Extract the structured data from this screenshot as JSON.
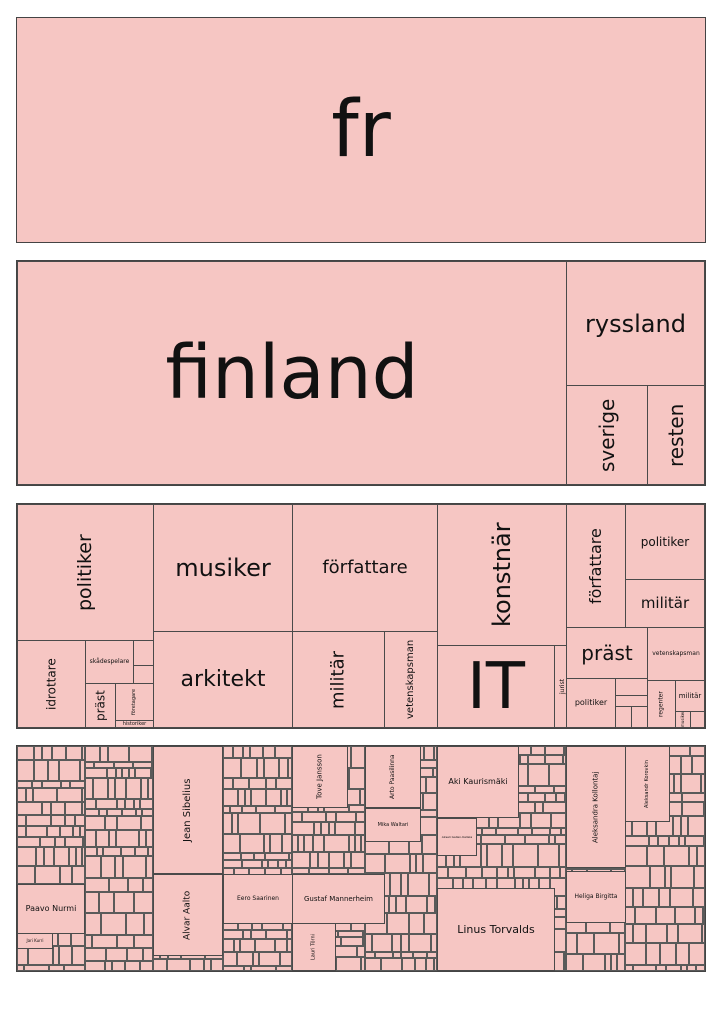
{
  "chart_data": {
    "type": "treemap",
    "levels": [
      {
        "level": 1,
        "cells": [
          {
            "label": "fr",
            "value": 100
          }
        ]
      },
      {
        "level": 2,
        "cells": [
          {
            "label": "finland",
            "value": 79.7
          },
          {
            "label": "ryssland",
            "value": 11.1
          },
          {
            "label": "sverige",
            "value": 5.0
          },
          {
            "label": "resten",
            "value": 4.2
          }
        ]
      },
      {
        "level": 3,
        "cells": [
          {
            "label": "politiker",
            "parent": "finland"
          },
          {
            "label": "idrottare",
            "parent": "finland"
          },
          {
            "label": "skådespelare",
            "parent": "finland"
          },
          {
            "label": "präst",
            "parent": "finland"
          },
          {
            "label": "företagare",
            "parent": "finland"
          },
          {
            "label": "historiker",
            "parent": "finland"
          },
          {
            "label": "musiker",
            "parent": "finland"
          },
          {
            "label": "arkitekt",
            "parent": "finland"
          },
          {
            "label": "författare",
            "parent": "finland"
          },
          {
            "label": "militär",
            "parent": "finland"
          },
          {
            "label": "vetenskapsman",
            "parent": "finland"
          },
          {
            "label": "konstnär",
            "parent": "finland"
          },
          {
            "label": "IT",
            "parent": "finland"
          },
          {
            "label": "jurist",
            "parent": "finland"
          },
          {
            "label": "författare",
            "parent": "ryssland"
          },
          {
            "label": "politiker",
            "parent": "ryssland"
          },
          {
            "label": "militär",
            "parent": "ryssland"
          },
          {
            "label": "präst",
            "parent": "sverige"
          },
          {
            "label": "politiker",
            "parent": "sverige"
          },
          {
            "label": "vetenskapsman",
            "parent": "resten"
          },
          {
            "label": "militär",
            "parent": "resten"
          },
          {
            "label": "regenter",
            "parent": "resten"
          },
          {
            "label": "musiker",
            "parent": "resten"
          }
        ]
      },
      {
        "level": 4,
        "cells": [
          {
            "label": "Jean Sibelius"
          },
          {
            "label": "Tove Jansson"
          },
          {
            "label": "Arto Paasilinna"
          },
          {
            "label": "Aki Kaurismäki"
          },
          {
            "label": "Aleksandra Kollontaj"
          },
          {
            "label": "Aleksandr Korovkin"
          },
          {
            "label": "Paavo Nurmi"
          },
          {
            "label": "Alvar Aalto"
          },
          {
            "label": "Eero Saarinen"
          },
          {
            "label": "Gustaf Mannerheim"
          },
          {
            "label": "Linus Torvalds"
          },
          {
            "label": "Heliga Birgitta"
          },
          {
            "label": "Lauri Törni"
          },
          {
            "label": "Jari Kurri"
          },
          {
            "label": "Mika Waltari"
          },
          {
            "label": "Akseli Gallen-Kallela"
          }
        ]
      }
    ]
  },
  "colors": {
    "cell_fill": "#f6c6c3",
    "cell_border": "#4a4a4a"
  }
}
